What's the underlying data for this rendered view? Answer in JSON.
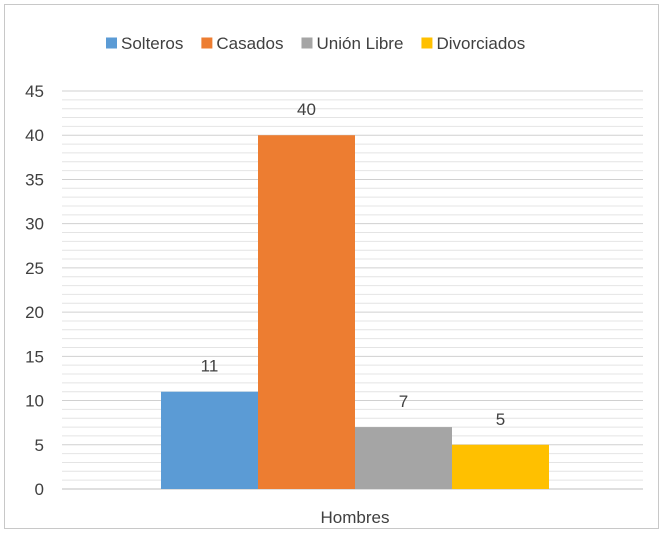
{
  "chart_data": {
    "type": "bar",
    "categories": [
      "Hombres"
    ],
    "series": [
      {
        "name": "Solteros",
        "values": [
          11
        ],
        "color": "#5b9bd5"
      },
      {
        "name": "Casados",
        "values": [
          40
        ],
        "color": "#ed7d31"
      },
      {
        "name": "Unión Libre",
        "values": [
          7
        ],
        "color": "#a5a5a5"
      },
      {
        "name": "Divorciados",
        "values": [
          5
        ],
        "color": "#ffc000"
      }
    ],
    "ylim": [
      0,
      45
    ],
    "yticks": [
      0,
      5,
      10,
      15,
      20,
      25,
      30,
      35,
      40,
      45
    ],
    "grid": true,
    "data_labels": true,
    "legend_position": "top"
  }
}
